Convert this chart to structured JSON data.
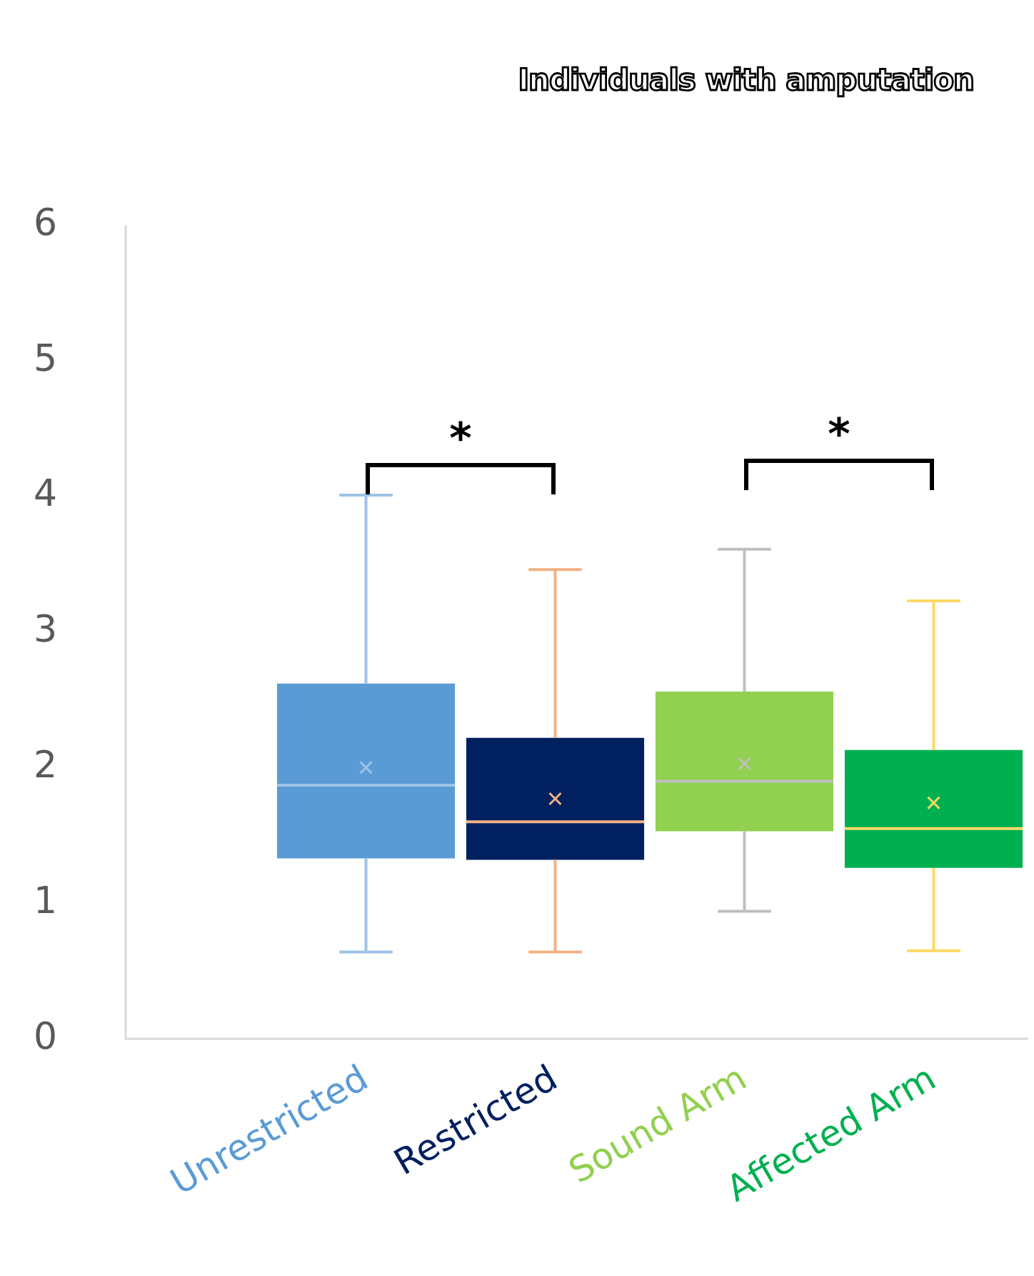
{
  "chart_data": {
    "type": "box",
    "title": "Individuals with amputation",
    "categories": [
      "Unrestricted",
      "Restricted",
      "Sound Arm",
      "Affected Arm"
    ],
    "colors": [
      "#5b9bd5",
      "#002060",
      "#92d050",
      "#00b050"
    ],
    "boxes": [
      {
        "low": 0.64,
        "q1": 1.33,
        "median": 1.87,
        "q3": 2.62,
        "high": 4.01,
        "mean": 2.0
      },
      {
        "low": 0.64,
        "q1": 1.32,
        "median": 1.6,
        "q3": 2.22,
        "high": 3.46,
        "mean": 1.77
      },
      {
        "low": 0.94,
        "q1": 1.53,
        "median": 1.9,
        "q3": 2.56,
        "high": 3.61,
        "mean": 2.03
      },
      {
        "low": 0.65,
        "q1": 1.26,
        "median": 1.55,
        "q3": 2.13,
        "high": 3.23,
        "mean": 1.74
      }
    ],
    "ylim": [
      0,
      6
    ],
    "yticks": [
      0,
      1,
      2,
      3,
      4,
      5,
      6
    ],
    "grid": false,
    "legend": false,
    "annotations": [
      "*",
      "*"
    ]
  }
}
